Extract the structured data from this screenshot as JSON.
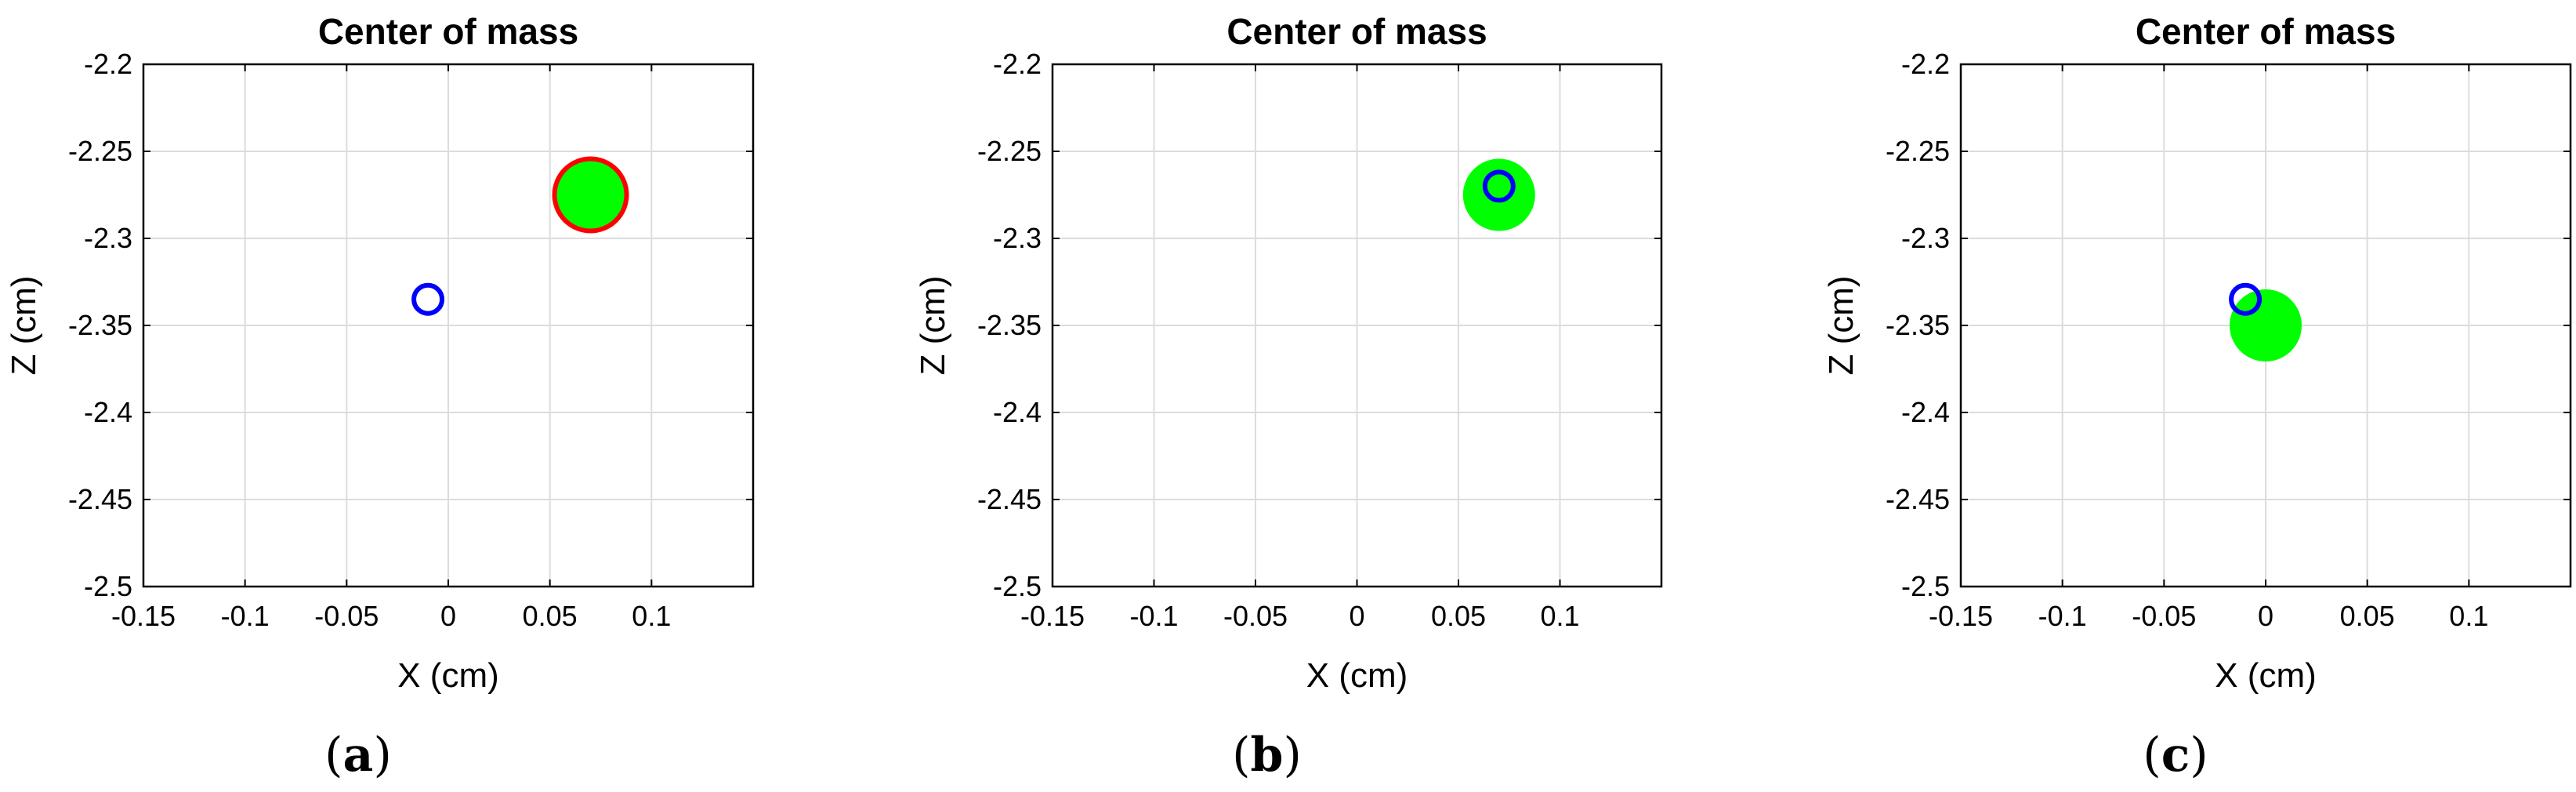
{
  "chart_data": [
    {
      "type": "scatter",
      "title": "Center of mass",
      "xlabel": "X (cm)",
      "ylabel": "Z (cm)",
      "xlim": [
        -0.15,
        0.15
      ],
      "ylim": [
        -2.5,
        -2.2
      ],
      "xticks": [
        "-0.15",
        "-0.1",
        "-0.05",
        "0",
        "0.05",
        "0.1"
      ],
      "yticks": [
        "-2.2",
        "-2.25",
        "-2.3",
        "-2.35",
        "-2.4",
        "-2.45",
        "-2.5"
      ],
      "grid": true,
      "caption": {
        "open": "(",
        "letter": "a",
        "close": ")"
      },
      "points": [
        {
          "kind": "filled-disc",
          "x": 0.07,
          "y": -2.275,
          "fill": "#00ff00",
          "stroke": "#ff0000"
        },
        {
          "kind": "open-circle",
          "x": -0.01,
          "y": -2.335,
          "stroke": "#0000ff"
        }
      ]
    },
    {
      "type": "scatter",
      "title": "Center of mass",
      "xlabel": "X (cm)",
      "ylabel": "Z (cm)",
      "xlim": [
        -0.15,
        0.15
      ],
      "ylim": [
        -2.5,
        -2.2
      ],
      "xticks": [
        "-0.15",
        "-0.1",
        "-0.05",
        "0",
        "0.05",
        "0.1"
      ],
      "yticks": [
        "-2.2",
        "-2.25",
        "-2.3",
        "-2.35",
        "-2.4",
        "-2.45",
        "-2.5"
      ],
      "grid": true,
      "caption": {
        "open": "(",
        "letter": "b",
        "close": ")"
      },
      "points": [
        {
          "kind": "filled-disc",
          "x": 0.07,
          "y": -2.275,
          "fill": "#00ff00",
          "stroke": "none"
        },
        {
          "kind": "open-circle",
          "x": 0.07,
          "y": -2.27,
          "stroke": "#0000ff"
        }
      ]
    },
    {
      "type": "scatter",
      "title": "Center of mass",
      "xlabel": "X (cm)",
      "ylabel": "Z (cm)",
      "xlim": [
        -0.15,
        0.15
      ],
      "ylim": [
        -2.5,
        -2.2
      ],
      "xticks": [
        "-0.15",
        "-0.1",
        "-0.05",
        "0",
        "0.05",
        "0.1"
      ],
      "yticks": [
        "-2.2",
        "-2.25",
        "-2.3",
        "-2.35",
        "-2.4",
        "-2.45",
        "-2.5"
      ],
      "grid": true,
      "caption": {
        "open": "(",
        "letter": "c",
        "close": ")"
      },
      "points": [
        {
          "kind": "filled-disc",
          "x": 0.0,
          "y": -2.35,
          "fill": "#00ff00",
          "stroke": "none"
        },
        {
          "kind": "open-circle",
          "x": -0.01,
          "y": -2.335,
          "stroke": "#0000ff"
        }
      ]
    }
  ]
}
